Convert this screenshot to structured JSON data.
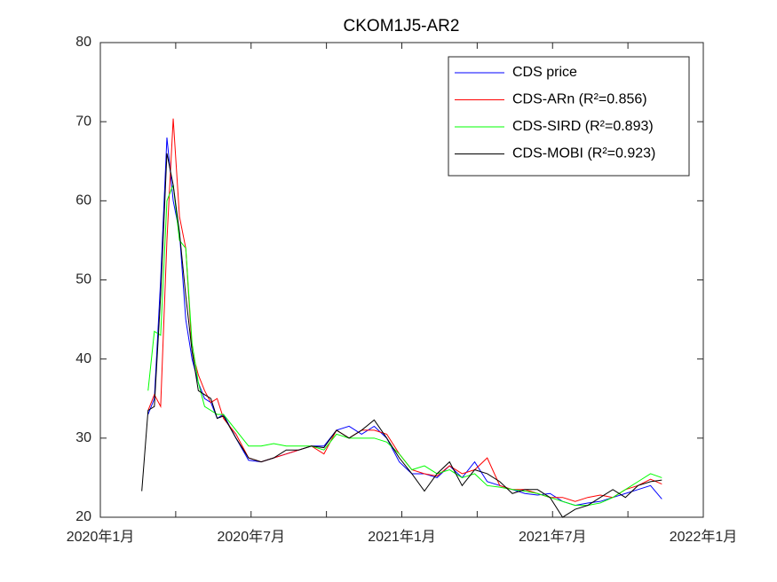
{
  "chart_data": {
    "type": "line",
    "title": "CKOM1J5-AR2",
    "x": [
      1.65,
      1.9,
      2.15,
      2.4,
      2.65,
      2.9,
      3.15,
      3.4,
      3.65,
      3.9,
      4.15,
      4.4,
      4.65,
      4.9,
      5.4,
      5.9,
      6.4,
      6.9,
      7.4,
      7.9,
      8.4,
      8.9,
      9.4,
      9.9,
      10.4,
      10.9,
      11.4,
      11.9,
      12.4,
      12.9,
      13.4,
      13.9,
      14.4,
      14.9,
      15.4,
      15.9,
      16.4,
      16.9,
      17.4,
      17.9,
      18.4,
      18.9,
      19.4,
      19.9,
      20.4,
      20.9,
      21.4,
      21.9,
      22.35
    ],
    "series": [
      {
        "name": "CDS price",
        "color": "#0000ff",
        "values": [
          null,
          33,
          35,
          50,
          68,
          60,
          56,
          45,
          40,
          37,
          35,
          34.5,
          32.5,
          33,
          30,
          27.2,
          27,
          27.5,
          28,
          28.5,
          29,
          29,
          31,
          31.5,
          30.5,
          31.5,
          30,
          27,
          25.5,
          25.5,
          25,
          26.5,
          25,
          27,
          24.5,
          24,
          23.5,
          23,
          22.8,
          23,
          22,
          21.5,
          21.8,
          22,
          22.5,
          23,
          23.5,
          24,
          22.3
        ]
      },
      {
        "name": "CDS-ARn   (R²=0.856)",
        "color": "#ff0000",
        "values": [
          null,
          33.5,
          35.5,
          34,
          55,
          70.4,
          58,
          54,
          41,
          38,
          36,
          34.5,
          35,
          32.5,
          30.5,
          27.5,
          27,
          27.5,
          28,
          28.5,
          29,
          28,
          31,
          30,
          31,
          31,
          30.5,
          28,
          26,
          25.5,
          25.2,
          26.5,
          25.5,
          26,
          27.5,
          24,
          23.5,
          23.5,
          23,
          22.5,
          22.5,
          22,
          22.5,
          22.8,
          22.5,
          23.5,
          24,
          24.8,
          24.2
        ]
      },
      {
        "name": "CDS-SIRD (R²=0.893)",
        "color": "#00ff00",
        "values": [
          null,
          36,
          43.5,
          43,
          60,
          62,
          55,
          54,
          42,
          37,
          34,
          33.5,
          33,
          33,
          31,
          29,
          29,
          29.3,
          29,
          29,
          29,
          28.5,
          30.5,
          30,
          30,
          30,
          29.5,
          28,
          26,
          26.5,
          25.5,
          26,
          25,
          25.5,
          24,
          23.8,
          23.5,
          23.3,
          23,
          22.5,
          22,
          21.5,
          21.5,
          21.8,
          22.5,
          23.5,
          24.5,
          25.5,
          25
        ]
      },
      {
        "name": "CDS-MOBI (R²=0.923)",
        "color": "#000000",
        "values": [
          23.3,
          33.5,
          34,
          48,
          66,
          62,
          56,
          48,
          41,
          36,
          35.5,
          35,
          32.5,
          32.8,
          30,
          27.5,
          27,
          27.5,
          28.5,
          28.5,
          29,
          28.8,
          31,
          30,
          31,
          32.3,
          30,
          27.5,
          25.5,
          23.3,
          25.5,
          27,
          24,
          26,
          25.5,
          24.5,
          23,
          23.5,
          23.5,
          22.5,
          20,
          21,
          21.5,
          22.5,
          23.5,
          22.5,
          24,
          24.5,
          24.7
        ]
      }
    ],
    "xlim": [
      0,
      24
    ],
    "xticks": [
      {
        "value": 0,
        "label": "2020年1月"
      },
      {
        "value": 6,
        "label": "2020年7月"
      },
      {
        "value": 12,
        "label": "2021年1月"
      },
      {
        "value": 18,
        "label": "2021年7月"
      },
      {
        "value": 24,
        "label": "2022年1月"
      }
    ],
    "xminorticks": [
      3,
      9,
      15,
      21
    ],
    "ylim": [
      20,
      80
    ],
    "yticks": [
      20,
      30,
      40,
      50,
      60,
      70,
      80
    ],
    "legend": "upper right"
  }
}
